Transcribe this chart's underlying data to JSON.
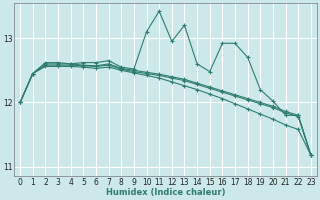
{
  "xlabel": "Humidex (Indice chaleur)",
  "bg_color": "#cce8e8",
  "grid_color": "#ffffff",
  "line_color": "#2e7d6e",
  "xlim": [
    -0.5,
    23.5
  ],
  "ylim": [
    10.85,
    13.55
  ],
  "yticks": [
    11,
    12,
    13
  ],
  "xticks": [
    0,
    1,
    2,
    3,
    4,
    5,
    6,
    7,
    8,
    9,
    10,
    11,
    12,
    13,
    14,
    15,
    16,
    17,
    18,
    19,
    20,
    21,
    22,
    23
  ],
  "line1_x": [
    0,
    1,
    2,
    3,
    4,
    5,
    6,
    7,
    8,
    9,
    10,
    11,
    12,
    13,
    14,
    15,
    16,
    17,
    18,
    19,
    20,
    21,
    22,
    23
  ],
  "line1_y": [
    12.0,
    12.45,
    12.62,
    12.62,
    12.6,
    12.62,
    12.62,
    12.65,
    12.55,
    12.52,
    13.1,
    13.42,
    12.95,
    13.2,
    12.6,
    12.48,
    12.92,
    12.92,
    12.7,
    12.2,
    12.02,
    11.8,
    11.8,
    11.18
  ],
  "line2_x": [
    0,
    1,
    2,
    3,
    4,
    5,
    6,
    7,
    8,
    9,
    10,
    11,
    12,
    13,
    14,
    15,
    16,
    17,
    18,
    19,
    20,
    21,
    22,
    23
  ],
  "line2_y": [
    12.0,
    12.45,
    12.56,
    12.56,
    12.56,
    12.55,
    12.53,
    12.55,
    12.5,
    12.46,
    12.42,
    12.38,
    12.32,
    12.26,
    12.2,
    12.13,
    12.06,
    11.98,
    11.9,
    11.82,
    11.74,
    11.65,
    11.58,
    11.18
  ],
  "line3_x": [
    0,
    1,
    2,
    3,
    4,
    5,
    6,
    7,
    8,
    9,
    10,
    11,
    12,
    13,
    14,
    15,
    16,
    17,
    18,
    19,
    20,
    21,
    22,
    23
  ],
  "line3_y": [
    12.0,
    12.45,
    12.58,
    12.58,
    12.58,
    12.57,
    12.56,
    12.58,
    12.52,
    12.48,
    12.45,
    12.42,
    12.38,
    12.34,
    12.28,
    12.22,
    12.16,
    12.1,
    12.04,
    11.98,
    11.92,
    11.84,
    11.78,
    11.18
  ],
  "line4_x": [
    0,
    1,
    2,
    3,
    4,
    5,
    6,
    7,
    8,
    9,
    10,
    11,
    12,
    13,
    14,
    15,
    16,
    17,
    18,
    19,
    20,
    21,
    22,
    23
  ],
  "line4_y": [
    12.0,
    12.45,
    12.6,
    12.6,
    12.6,
    12.58,
    12.57,
    12.6,
    12.53,
    12.5,
    12.47,
    12.44,
    12.4,
    12.36,
    12.3,
    12.24,
    12.18,
    12.12,
    12.06,
    12.0,
    11.94,
    11.86,
    11.8,
    11.18
  ]
}
